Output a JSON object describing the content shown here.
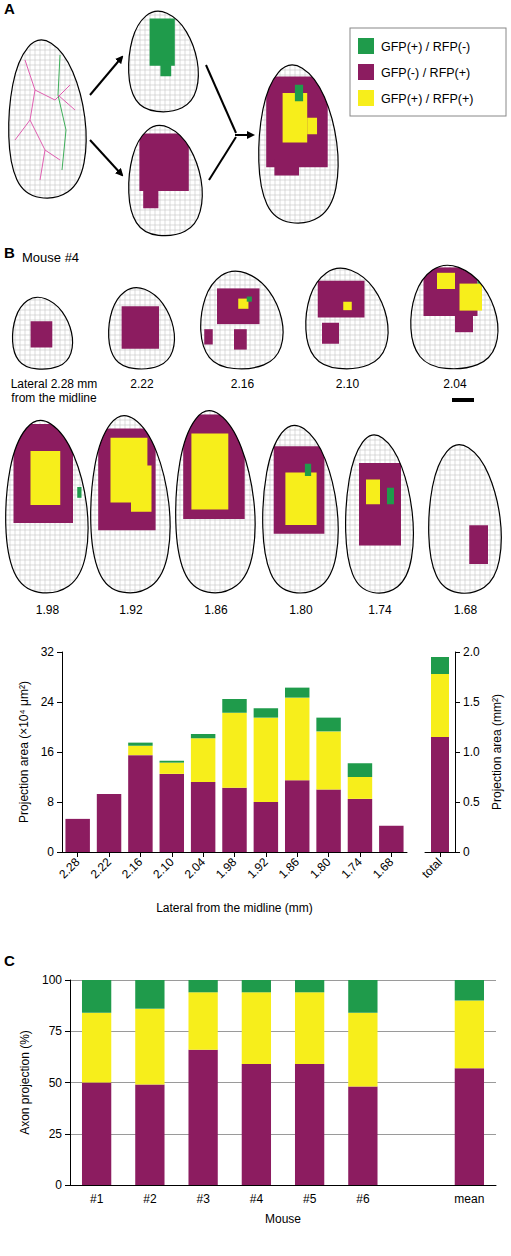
{
  "panel_letters": [
    "A",
    "B",
    "C"
  ],
  "sections": {
    "title": "Mouse #4",
    "labels": [
      "Lateral 2.28 mm from the midline",
      "2.22",
      "2.16",
      "2.10",
      "2.04",
      "1.98",
      "1.92",
      "1.86",
      "1.80",
      "1.74",
      "1.68"
    ]
  },
  "chart_data": [
    {
      "type": "bar",
      "stacked": true,
      "x_label": "Lateral from the midline (mm)",
      "y_label": "Projection area (×10⁴ μm²)",
      "categories": [
        "2.28",
        "2.22",
        "2.16",
        "2.10",
        "2.04",
        "1.98",
        "1.92",
        "1.86",
        "1.80",
        "1.74",
        "1.68"
      ],
      "series": [
        {
          "name": "GFP(+) / RFP(-)",
          "color": "#1f9b4b",
          "values": [
            0,
            0,
            0.5,
            0.3,
            0.7,
            2.2,
            1.5,
            1.6,
            2.2,
            2.2,
            0
          ]
        },
        {
          "name": "GFP(-) / RFP(+)",
          "color": "#8c1c60",
          "values": [
            5.3,
            9.3,
            15.5,
            12.5,
            11.2,
            10.3,
            8,
            11.5,
            10,
            8.5,
            4.2
          ]
        },
        {
          "name": "GFP(+) / RFP(+)",
          "color": "#f7ee1b",
          "values": [
            0,
            0,
            1.5,
            1.8,
            7,
            12,
            13.5,
            13.2,
            9.3,
            3.5,
            0
          ]
        }
      ],
      "ylim": [
        0,
        32
      ],
      "yticks": [
        0,
        8,
        16,
        24,
        32
      ],
      "grid": false
    },
    {
      "type": "bar",
      "stacked": true,
      "y_label": "Projection area (mm²)",
      "categories": [
        "total"
      ],
      "series": [
        {
          "name": "GFP(+) / RFP(-)",
          "color": "#1f9b4b",
          "values": [
            0.17
          ]
        },
        {
          "name": "GFP(-) / RFP(+)",
          "color": "#8c1c60",
          "values": [
            1.15
          ]
        },
        {
          "name": "GFP(+) / RFP(+)",
          "color": "#f7ee1b",
          "values": [
            0.63
          ]
        }
      ],
      "ylim": [
        0,
        2
      ],
      "yticks": [
        0,
        0.5,
        {
          "value": 1,
          "label": "1.0"
        },
        1.5,
        {
          "value": 2,
          "label": "2.0"
        }
      ],
      "grid": false
    },
    {
      "type": "bar",
      "stacked": true,
      "x_label": "Mouse",
      "y_label": "Axon projection (%)",
      "categories": [
        "#1",
        "#2",
        "#3",
        "#4",
        "#5",
        "#6",
        null,
        "mean"
      ],
      "series": [
        {
          "name": "GFP(+) / RFP(-)",
          "color": "#1f9b4b",
          "values": [
            16,
            14,
            6,
            6,
            6,
            16,
            null,
            10
          ]
        },
        {
          "name": "GFP(-) / RFP(+)",
          "color": "#8c1c60",
          "values": [
            50,
            49,
            66,
            59,
            59,
            48,
            null,
            57
          ]
        },
        {
          "name": "GFP(+) / RFP(+)",
          "color": "#f7ee1b",
          "values": [
            34,
            37,
            28,
            35,
            35,
            36,
            null,
            33
          ]
        }
      ],
      "ylim": [
        0,
        100
      ],
      "yticks": [
        0,
        25,
        50,
        75,
        100
      ],
      "grid": true
    }
  ]
}
